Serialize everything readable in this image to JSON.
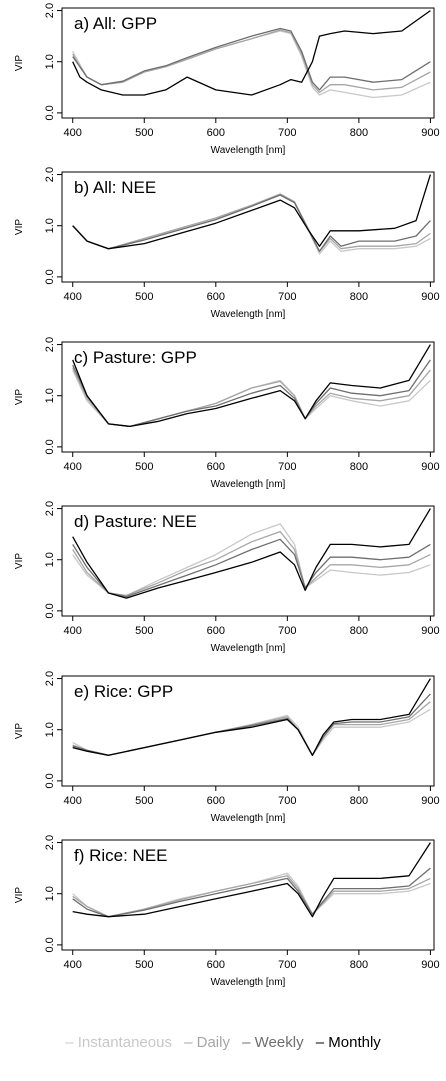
{
  "legend": [
    {
      "label": "– Instantaneous",
      "color": "#c8c8c8"
    },
    {
      "label": "– Daily",
      "color": "#a6a6a6"
    },
    {
      "label": "– Weekly",
      "color": "#6e6e6e"
    },
    {
      "label": "– Monthly",
      "color": "#000000"
    }
  ],
  "chart_data": [
    {
      "type": "line",
      "title": "a) All: GPP",
      "xlabel": "Wavelength [nm]",
      "ylabel": "VIP",
      "xlim": [
        385,
        905
      ],
      "ylim": [
        -0.1,
        2.05
      ],
      "xticks": [
        400,
        500,
        600,
        700,
        800,
        900
      ],
      "yticks": [
        "0.0",
        "1.0",
        "2.0"
      ],
      "x": [
        400,
        410,
        420,
        440,
        470,
        500,
        530,
        560,
        600,
        650,
        690,
        705,
        720,
        735,
        745,
        760,
        780,
        820,
        860,
        900
      ],
      "series": [
        {
          "name": "Instantaneous",
          "color": "#c8c8c8",
          "values": [
            1.2,
            0.95,
            0.7,
            0.55,
            0.6,
            0.8,
            0.9,
            1.05,
            1.25,
            1.45,
            1.6,
            1.55,
            1.1,
            0.5,
            0.35,
            0.45,
            0.4,
            0.3,
            0.35,
            0.6
          ]
        },
        {
          "name": "Daily",
          "color": "#a6a6a6",
          "values": [
            1.15,
            0.9,
            0.7,
            0.55,
            0.6,
            0.8,
            0.9,
            1.05,
            1.25,
            1.45,
            1.62,
            1.57,
            1.15,
            0.55,
            0.4,
            0.55,
            0.55,
            0.45,
            0.5,
            0.8
          ]
        },
        {
          "name": "Weekly",
          "color": "#6e6e6e",
          "values": [
            1.1,
            0.9,
            0.7,
            0.55,
            0.62,
            0.82,
            0.92,
            1.08,
            1.28,
            1.5,
            1.65,
            1.6,
            1.2,
            0.6,
            0.45,
            0.7,
            0.7,
            0.6,
            0.65,
            1.0
          ]
        },
        {
          "name": "Monthly",
          "color": "#000000",
          "values": [
            1.0,
            0.7,
            0.6,
            0.45,
            0.35,
            0.35,
            0.45,
            0.7,
            0.45,
            0.35,
            0.55,
            0.65,
            0.6,
            1.0,
            1.5,
            1.55,
            1.6,
            1.55,
            1.6,
            2.0
          ]
        }
      ]
    },
    {
      "type": "line",
      "title": "b) All: NEE",
      "xlabel": "Wavelength [nm]",
      "ylabel": "VIP",
      "xlim": [
        385,
        905
      ],
      "ylim": [
        -0.1,
        2.05
      ],
      "xticks": [
        400,
        500,
        600,
        700,
        800,
        900
      ],
      "yticks": [
        "0.0",
        "1.0",
        "2.0"
      ],
      "x": [
        400,
        420,
        450,
        500,
        550,
        600,
        650,
        690,
        710,
        730,
        745,
        760,
        775,
        800,
        850,
        880,
        900
      ],
      "series": [
        {
          "name": "Instantaneous",
          "color": "#c8c8c8",
          "values": [
            1.0,
            0.7,
            0.55,
            0.75,
            0.95,
            1.15,
            1.4,
            1.6,
            1.45,
            0.9,
            0.45,
            0.7,
            0.5,
            0.55,
            0.55,
            0.6,
            0.75
          ]
        },
        {
          "name": "Daily",
          "color": "#a6a6a6",
          "values": [
            1.0,
            0.7,
            0.55,
            0.75,
            0.95,
            1.15,
            1.4,
            1.62,
            1.47,
            0.92,
            0.5,
            0.75,
            0.55,
            0.6,
            0.6,
            0.65,
            0.85
          ]
        },
        {
          "name": "Weekly",
          "color": "#6e6e6e",
          "values": [
            1.0,
            0.7,
            0.55,
            0.72,
            0.92,
            1.12,
            1.38,
            1.6,
            1.45,
            0.9,
            0.5,
            0.8,
            0.6,
            0.7,
            0.7,
            0.8,
            1.1
          ]
        },
        {
          "name": "Monthly",
          "color": "#000000",
          "values": [
            1.0,
            0.7,
            0.55,
            0.65,
            0.85,
            1.05,
            1.3,
            1.5,
            1.35,
            0.9,
            0.6,
            0.9,
            0.9,
            0.9,
            0.95,
            1.1,
            2.0
          ]
        }
      ]
    },
    {
      "type": "line",
      "title": "c) Pasture: GPP",
      "xlabel": "Wavelength [nm]",
      "ylabel": "VIP",
      "xlim": [
        385,
        905
      ],
      "ylim": [
        -0.1,
        2.05
      ],
      "xticks": [
        400,
        500,
        600,
        700,
        800,
        900
      ],
      "yticks": [
        "0.0",
        "1.0",
        "2.0"
      ],
      "x": [
        400,
        420,
        450,
        480,
        520,
        560,
        600,
        650,
        690,
        710,
        725,
        740,
        760,
        790,
        830,
        870,
        900
      ],
      "series": [
        {
          "name": "Instantaneous",
          "color": "#c8c8c8",
          "values": [
            1.5,
            0.9,
            0.45,
            0.4,
            0.55,
            0.7,
            0.85,
            1.15,
            1.3,
            1.0,
            0.55,
            0.75,
            1.0,
            0.9,
            0.8,
            0.9,
            1.3
          ]
        },
        {
          "name": "Daily",
          "color": "#a6a6a6",
          "values": [
            1.55,
            0.95,
            0.45,
            0.4,
            0.55,
            0.7,
            0.85,
            1.15,
            1.28,
            1.0,
            0.55,
            0.8,
            1.05,
            0.95,
            0.9,
            1.0,
            1.5
          ]
        },
        {
          "name": "Weekly",
          "color": "#6e6e6e",
          "values": [
            1.6,
            1.0,
            0.45,
            0.4,
            0.55,
            0.7,
            0.8,
            1.05,
            1.2,
            0.95,
            0.55,
            0.85,
            1.15,
            1.05,
            1.0,
            1.1,
            1.7
          ]
        },
        {
          "name": "Monthly",
          "color": "#000000",
          "values": [
            1.7,
            1.0,
            0.45,
            0.4,
            0.5,
            0.65,
            0.75,
            0.95,
            1.1,
            0.9,
            0.55,
            0.9,
            1.25,
            1.2,
            1.15,
            1.3,
            2.0
          ]
        }
      ]
    },
    {
      "type": "line",
      "title": "d) Pasture: NEE",
      "xlabel": "Wavelength [nm]",
      "ylabel": "VIP",
      "xlim": [
        385,
        905
      ],
      "ylim": [
        -0.1,
        2.05
      ],
      "xticks": [
        400,
        500,
        600,
        700,
        800,
        900
      ],
      "yticks": [
        "0.0",
        "1.0",
        "2.0"
      ],
      "x": [
        400,
        420,
        450,
        475,
        520,
        560,
        600,
        650,
        690,
        710,
        725,
        740,
        760,
        790,
        830,
        870,
        900
      ],
      "series": [
        {
          "name": "Instantaneous",
          "color": "#c8c8c8",
          "values": [
            1.1,
            0.7,
            0.35,
            0.3,
            0.6,
            0.85,
            1.1,
            1.5,
            1.7,
            1.3,
            0.45,
            0.6,
            0.8,
            0.75,
            0.7,
            0.75,
            0.9
          ]
        },
        {
          "name": "Daily",
          "color": "#a6a6a6",
          "values": [
            1.2,
            0.75,
            0.35,
            0.3,
            0.55,
            0.8,
            1.0,
            1.35,
            1.55,
            1.2,
            0.45,
            0.65,
            0.9,
            0.9,
            0.85,
            0.9,
            1.1
          ]
        },
        {
          "name": "Weekly",
          "color": "#6e6e6e",
          "values": [
            1.3,
            0.85,
            0.35,
            0.28,
            0.5,
            0.7,
            0.9,
            1.2,
            1.4,
            1.1,
            0.45,
            0.75,
            1.05,
            1.05,
            1.0,
            1.05,
            1.3
          ]
        },
        {
          "name": "Monthly",
          "color": "#000000",
          "values": [
            1.45,
            0.95,
            0.35,
            0.25,
            0.45,
            0.6,
            0.75,
            0.95,
            1.15,
            0.9,
            0.4,
            0.85,
            1.3,
            1.3,
            1.25,
            1.3,
            2.0
          ]
        }
      ]
    },
    {
      "type": "line",
      "title": "e) Rice: GPP",
      "xlabel": "Wavelength [nm]",
      "ylabel": "VIP",
      "xlim": [
        385,
        905
      ],
      "ylim": [
        -0.1,
        2.05
      ],
      "xticks": [
        400,
        500,
        600,
        700,
        800,
        900
      ],
      "yticks": [
        "0.0",
        "1.0",
        "2.0"
      ],
      "x": [
        400,
        420,
        450,
        500,
        550,
        600,
        650,
        700,
        715,
        735,
        750,
        765,
        790,
        830,
        870,
        900
      ],
      "series": [
        {
          "name": "Instantaneous",
          "color": "#c8c8c8",
          "values": [
            0.75,
            0.6,
            0.5,
            0.65,
            0.8,
            0.95,
            1.1,
            1.28,
            1.05,
            0.5,
            0.8,
            1.05,
            1.05,
            1.05,
            1.15,
            1.4
          ]
        },
        {
          "name": "Daily",
          "color": "#a6a6a6",
          "values": [
            0.7,
            0.6,
            0.5,
            0.65,
            0.8,
            0.95,
            1.1,
            1.25,
            1.0,
            0.5,
            0.85,
            1.1,
            1.1,
            1.1,
            1.2,
            1.55
          ]
        },
        {
          "name": "Weekly",
          "color": "#6e6e6e",
          "values": [
            0.68,
            0.6,
            0.5,
            0.65,
            0.8,
            0.95,
            1.08,
            1.22,
            1.0,
            0.5,
            0.85,
            1.12,
            1.15,
            1.15,
            1.25,
            1.7
          ]
        },
        {
          "name": "Monthly",
          "color": "#000000",
          "values": [
            0.65,
            0.58,
            0.5,
            0.65,
            0.8,
            0.95,
            1.05,
            1.2,
            1.0,
            0.5,
            0.9,
            1.15,
            1.2,
            1.2,
            1.3,
            2.0
          ]
        }
      ]
    },
    {
      "type": "line",
      "title": "f) Rice: NEE",
      "xlabel": "Wavelength [nm]",
      "ylabel": "VIP",
      "xlim": [
        385,
        905
      ],
      "ylim": [
        -0.1,
        2.05
      ],
      "xticks": [
        400,
        500,
        600,
        700,
        800,
        900
      ],
      "yticks": [
        "0.0",
        "1.0",
        "2.0"
      ],
      "x": [
        400,
        420,
        450,
        500,
        550,
        600,
        650,
        700,
        715,
        735,
        750,
        765,
        790,
        830,
        870,
        900
      ],
      "series": [
        {
          "name": "Instantaneous",
          "color": "#c8c8c8",
          "values": [
            1.0,
            0.75,
            0.55,
            0.7,
            0.9,
            1.05,
            1.2,
            1.4,
            1.15,
            0.6,
            0.8,
            1.0,
            1.0,
            1.0,
            1.05,
            1.2
          ]
        },
        {
          "name": "Daily",
          "color": "#a6a6a6",
          "values": [
            0.95,
            0.75,
            0.55,
            0.7,
            0.88,
            1.05,
            1.2,
            1.35,
            1.1,
            0.6,
            0.82,
            1.05,
            1.05,
            1.05,
            1.1,
            1.3
          ]
        },
        {
          "name": "Weekly",
          "color": "#6e6e6e",
          "values": [
            0.9,
            0.7,
            0.55,
            0.68,
            0.85,
            1.0,
            1.15,
            1.3,
            1.05,
            0.6,
            0.85,
            1.1,
            1.1,
            1.1,
            1.15,
            1.5
          ]
        },
        {
          "name": "Monthly",
          "color": "#000000",
          "values": [
            0.65,
            0.6,
            0.55,
            0.6,
            0.75,
            0.9,
            1.05,
            1.2,
            1.0,
            0.55,
            0.95,
            1.3,
            1.3,
            1.3,
            1.35,
            2.0
          ]
        }
      ]
    }
  ]
}
